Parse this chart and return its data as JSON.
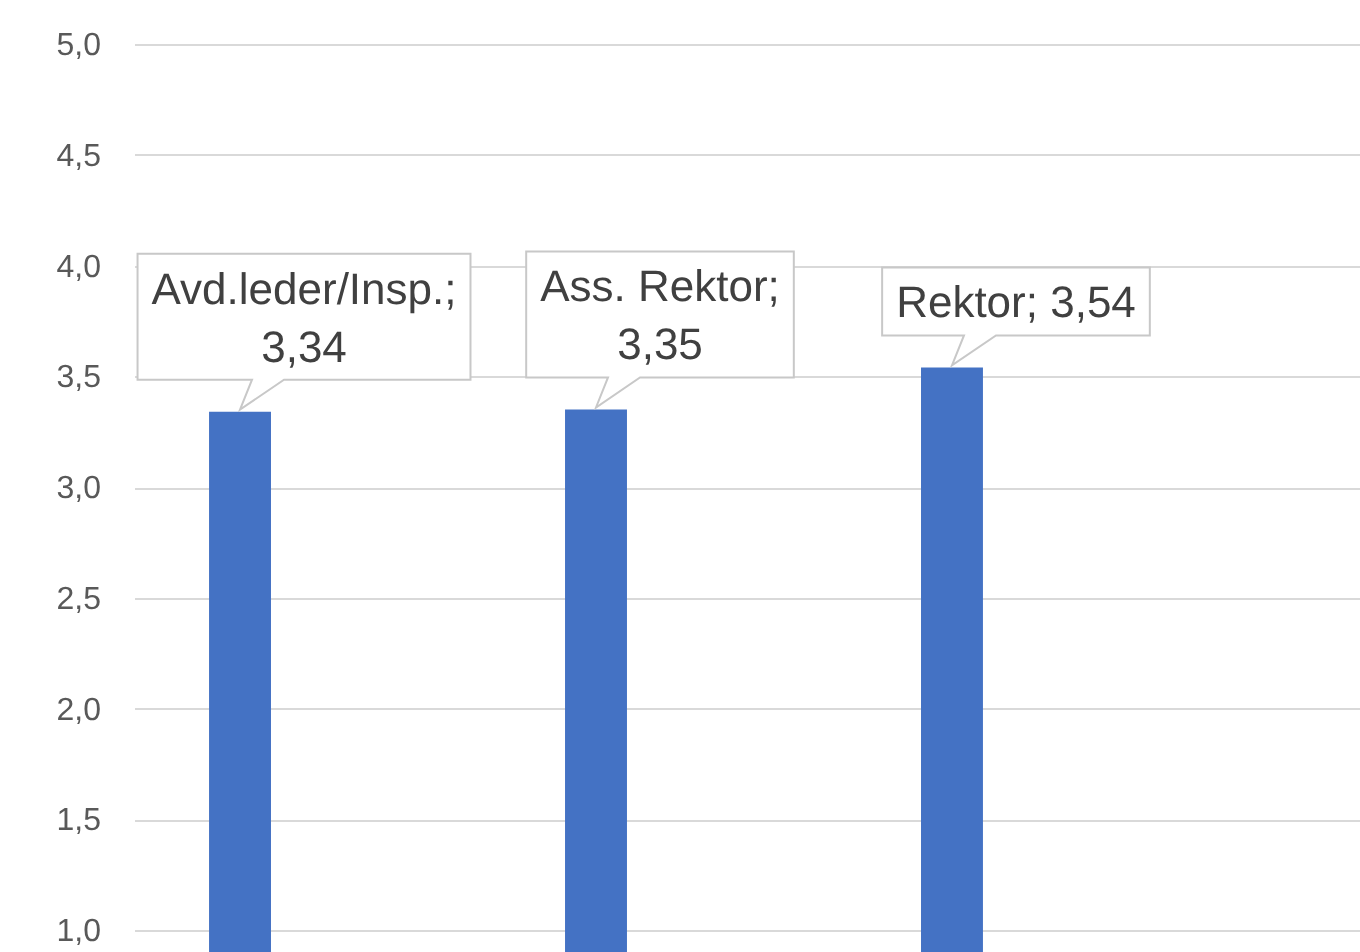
{
  "chart_data": {
    "type": "bar",
    "categories": [
      null,
      null,
      null
    ],
    "values": [
      3.34,
      3.35,
      3.54
    ],
    "value_labels": [
      "Avd.leder/Insp.; 3,34",
      "Ass. Rektor; 3,35",
      "Rektor; 3,54"
    ],
    "color": "#4472c4",
    "ylim": [
      1,
      5
    ],
    "yticks": [
      {
        "value": 1,
        "label": "1,0"
      },
      {
        "value": 1.5,
        "label": "1,5"
      },
      {
        "value": 2,
        "label": "2,0"
      },
      {
        "value": 2.5,
        "label": "2,5"
      },
      {
        "value": 3,
        "label": "3,0"
      },
      {
        "value": 3.5,
        "label": "3,5"
      },
      {
        "value": 4,
        "label": "4,0"
      },
      {
        "value": 4.5,
        "label": "4,5"
      },
      {
        "value": 5,
        "label": "5,0"
      }
    ],
    "grid": "y",
    "tick_labels": "y"
  }
}
